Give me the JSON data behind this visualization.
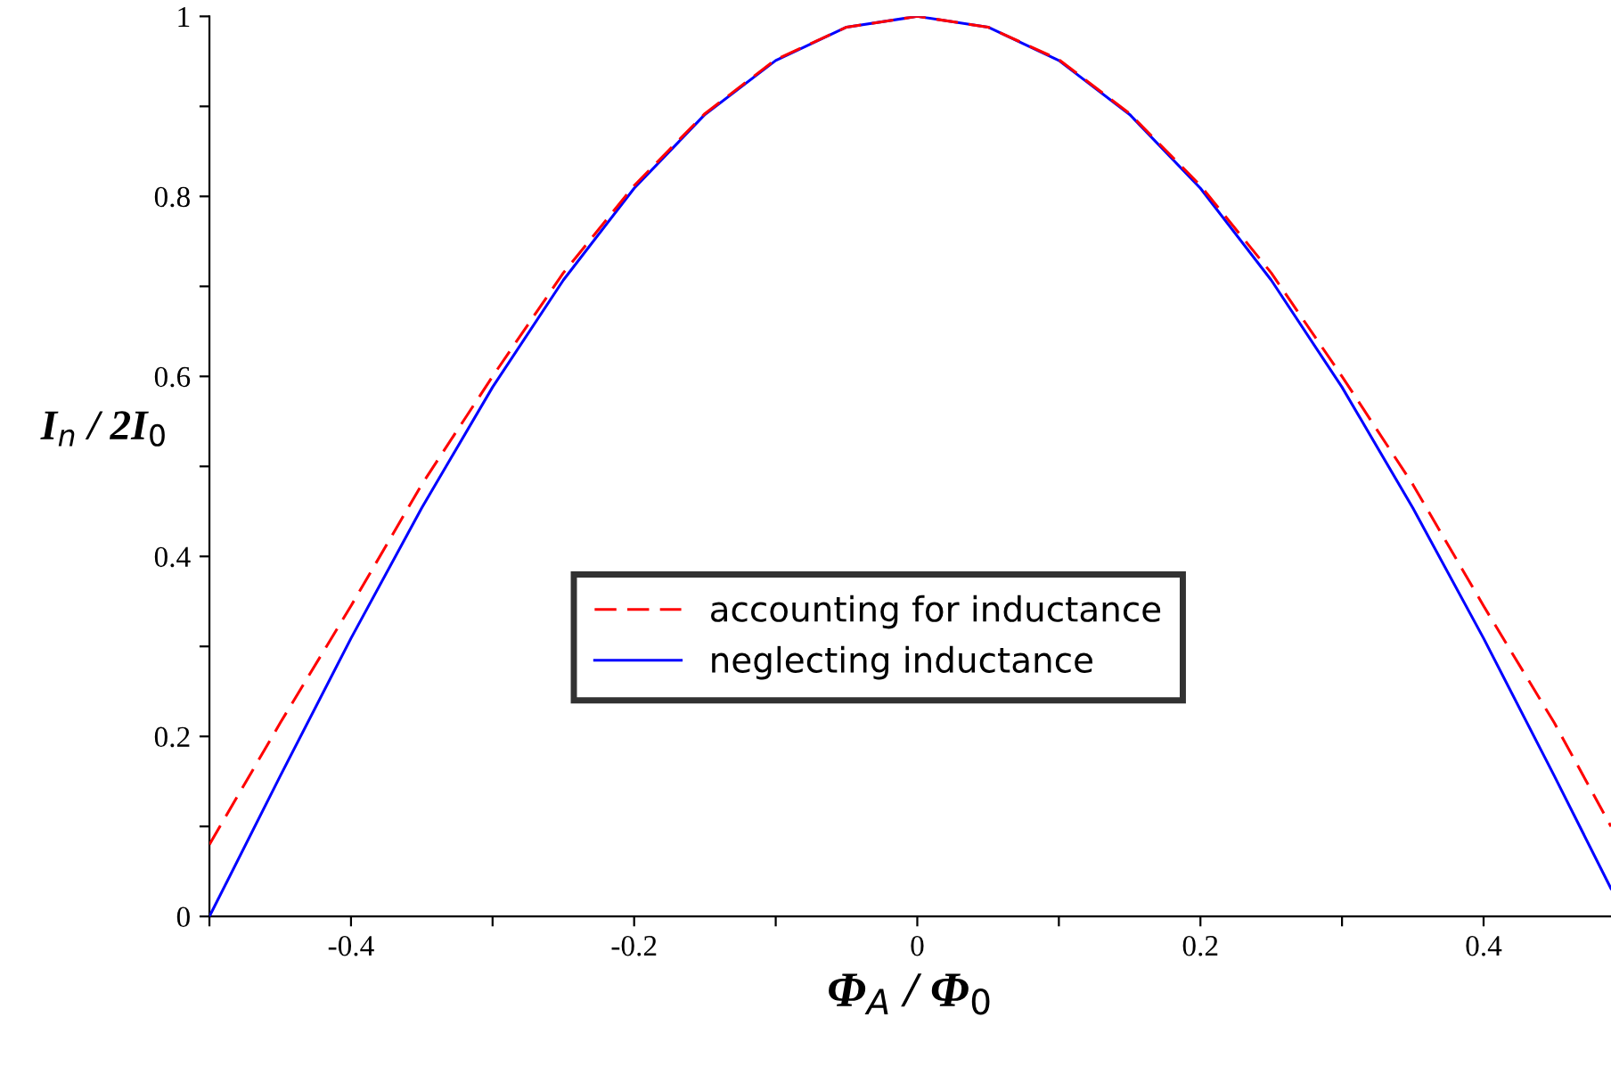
{
  "chart_data": {
    "type": "line",
    "xlabel": "Φ$_{A}$ / Φ$_{0}$",
    "ylabel": "I$_{n}$ / 2I$_{0}$",
    "x": [
      -0.5,
      -0.45,
      -0.4,
      -0.35,
      -0.3,
      -0.25,
      -0.2,
      -0.15,
      -0.1,
      -0.05,
      0,
      0.05,
      0.1,
      0.15,
      0.2,
      0.25,
      0.3,
      0.35,
      0.4,
      0.45,
      0.49
    ],
    "series": [
      {
        "name": "accounting for inductance",
        "color": "#ff0000",
        "line_style": "dashed",
        "values": [
          0.08,
          0.215,
          0.345,
          0.48,
          0.6,
          0.715,
          0.812,
          0.892,
          0.952,
          0.988,
          1,
          0.988,
          0.952,
          0.892,
          0.812,
          0.715,
          0.6,
          0.48,
          0.345,
          0.215,
          0.1
        ]
      },
      {
        "name": "neglecting inductance",
        "color": "#0000ff",
        "line_style": "solid",
        "values": [
          0,
          0.156,
          0.309,
          0.454,
          0.588,
          0.707,
          0.809,
          0.891,
          0.951,
          0.988,
          1,
          0.988,
          0.951,
          0.891,
          0.809,
          0.707,
          0.588,
          0.454,
          0.309,
          0.156,
          0.031
        ]
      }
    ],
    "xlim": [
      -0.5,
      0.49
    ],
    "ylim": [
      0,
      1
    ],
    "xticks": [
      {
        "value": -0.5,
        "label": null
      },
      -0.4,
      {
        "value": -0.3,
        "label": null
      },
      -0.2,
      {
        "value": -0.1,
        "label": null
      },
      0,
      {
        "value": 0.1,
        "label": null
      },
      0.2,
      {
        "value": 0.3,
        "label": null
      },
      0.4
    ],
    "yticks": [
      0,
      {
        "value": 0.1,
        "label": null
      },
      0.2,
      {
        "value": 0.3,
        "label": null
      },
      0.4,
      {
        "value": 0.5,
        "label": null
      },
      0.6,
      {
        "value": 0.7,
        "label": null
      },
      0.8,
      {
        "value": 0.9,
        "label": null
      },
      1
    ],
    "grid": false,
    "legend": "center",
    "marker": "none"
  }
}
